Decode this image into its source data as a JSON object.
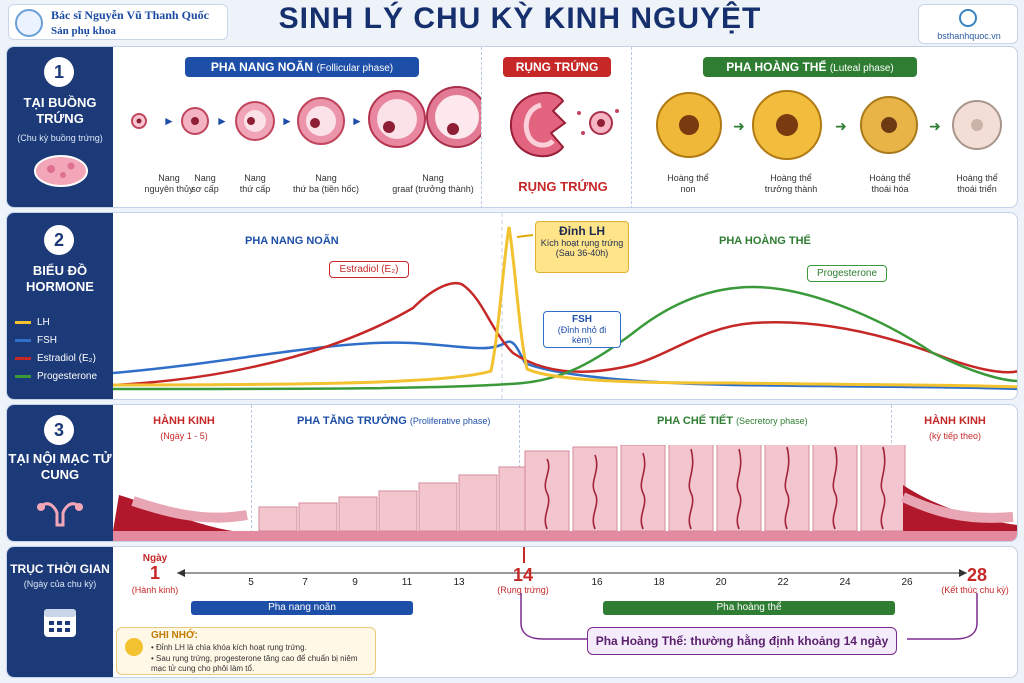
{
  "header": {
    "brand_name": "Bác sĩ Nguyễn Vũ Thanh Quốc",
    "brand_sub": "Sản phụ khoa",
    "title": "SINH LÝ CHU KỲ KINH NGUYỆT",
    "site": "bsthanhquoc.vn"
  },
  "section1": {
    "num": "1",
    "title": "TẠI BUỒNG TRỨNG",
    "sub": "(Chu kỳ buồng trứng)",
    "phase_follicular": "PHA NANG NOÃN",
    "phase_follicular_en": "(Follicular phase)",
    "phase_ovulation": "RỤNG TRỨNG",
    "ovulation_label": "RỤNG TRỨNG",
    "phase_luteal": "PHA HOÀNG THỂ",
    "phase_luteal_en": "(Luteal phase)",
    "follicles": [
      {
        "line1": "Nang",
        "line2": "nguyên thủy"
      },
      {
        "line1": "Nang",
        "line2": "sơ cấp"
      },
      {
        "line1": "Nang",
        "line2": "thứ cấp"
      },
      {
        "line1": "Nang",
        "line2": "thứ ba (tiền hốc)"
      },
      {
        "line1": "Nang",
        "line2": "graaf (trưởng thành)"
      }
    ],
    "corpus": [
      {
        "line1": "Hoàng thể",
        "line2": "non"
      },
      {
        "line1": "Hoàng thể",
        "line2": "trưởng thành"
      },
      {
        "line1": "Hoàng thể",
        "line2": "thoái hóa"
      },
      {
        "line1": "Hoàng thể",
        "line2": "thoái triển"
      }
    ],
    "colors": {
      "follicular": "#1e4fa8",
      "ovulation": "#c62828",
      "luteal": "#2e7d32"
    }
  },
  "section2": {
    "num": "2",
    "title": "BIỂU ĐỒ HORMONE",
    "legend": [
      "LH",
      "FSH",
      "Estradiol (E₂)",
      "Progesterone"
    ],
    "legend_colors": [
      "#f2c230",
      "#2f6fc9",
      "#c62828",
      "#3a9a3a"
    ],
    "label_follicular": "PHA NANG NOÃN",
    "label_luteal": "PHA HOÀNG THỂ",
    "lh_peak_title": "Đỉnh LH",
    "lh_peak_line1": "Kích hoạt rụng trứng",
    "lh_peak_line2": "(Sau 36-40h)",
    "estradiol_label": "Estradiol (E₂)",
    "progesterone_label": "Progesterone",
    "fsh_label": "FSH",
    "fsh_sub": "(Đỉnh nhỏ đi kèm)"
  },
  "section3": {
    "num": "3",
    "title": "TẠI NỘI MẠC TỬ CUNG",
    "menses_title": "HÀNH KINH",
    "menses_sub": "(Ngày 1 - 5)",
    "proliferative": "PHA TĂNG TRƯỞNG",
    "proliferative_en": "(Proliferative phase)",
    "secretory": "PHA CHẾ TIẾT",
    "secretory_en": "(Secretory phase)",
    "menses2_title": "HÀNH KINH",
    "menses2_sub": "(kỳ tiếp theo)"
  },
  "section4": {
    "title": "TRỤC THỜI GIAN",
    "sub": "(Ngày của chu kỳ)",
    "day_label": "Ngày",
    "start_day": "1",
    "start_note": "(Hành kinh)",
    "mid_day": "14",
    "mid_note": "(Rụng trứng)",
    "end_day": "28",
    "end_note": "(Kết thúc chu kỳ)",
    "ticks": [
      "5",
      "7",
      "9",
      "11",
      "13",
      "16",
      "18",
      "20",
      "22",
      "24",
      "26"
    ],
    "bar_follicular": "Pha nang noãn",
    "bar_luteal": "Pha hoàng thể",
    "luteal_const": "Pha Hoàng Thể: thường hằng định khoảng 14 ngày",
    "note_title": "GHI NHỚ:",
    "note_1": "Đỉnh LH là chìa khóa kích hoạt rụng trứng.",
    "note_2": "Sau rụng trứng, progesterone tăng cao để chuẩn bị niêm mạc tử cung cho phôi làm tổ."
  }
}
